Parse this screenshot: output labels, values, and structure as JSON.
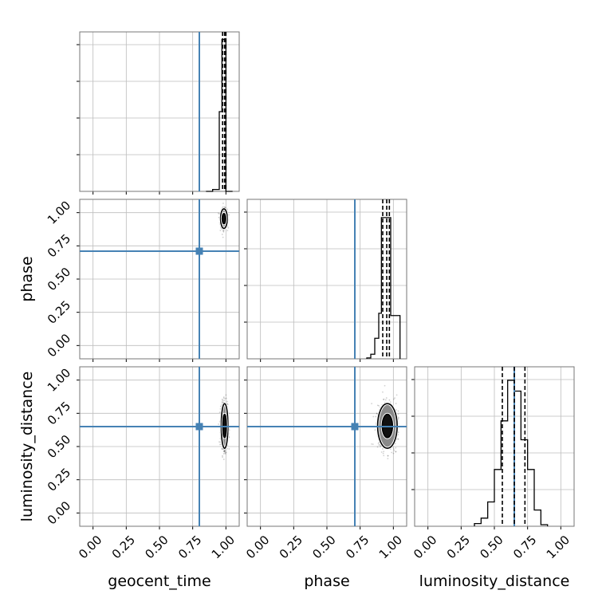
{
  "chart_data": {
    "type": "corner",
    "parameters": [
      "geocent_time",
      "phase",
      "luminosity_distance"
    ],
    "truths": [
      0.8,
      0.71,
      0.65
    ],
    "truth_color": "#4682b4",
    "axis_range": [
      -0.1,
      1.1
    ],
    "tick_values": [
      0.0,
      0.25,
      0.5,
      0.75,
      1.0
    ],
    "tick_labels": [
      "0.00",
      "0.25",
      "0.50",
      "0.75",
      "1.00"
    ],
    "diag_hist_ticks": [
      1,
      2,
      3,
      4
    ],
    "histograms": [
      {
        "name": "geocent_time",
        "bin_edges": [
          0.85,
          0.9,
          0.95,
          0.97,
          1.0,
          1.05
        ],
        "counts": [
          0.0,
          0.05,
          2.1,
          4.0,
          0.0
        ],
        "ymax": 4.2,
        "quantiles": [
          0.975,
          0.99,
          1.0
        ]
      },
      {
        "name": "phase",
        "bin_edges": [
          0.8,
          0.83,
          0.86,
          0.89,
          0.91,
          0.93,
          0.96,
          0.98,
          1.0,
          1.05
        ],
        "counts": [
          0.02,
          0.1,
          0.45,
          1.0,
          3.1,
          3.1,
          3.1,
          0.95,
          0.95
        ],
        "ymax": 3.5,
        "quantiles": [
          0.92,
          0.95,
          0.97
        ]
      },
      {
        "name": "luminosity_distance",
        "bin_edges": [
          0.35,
          0.4,
          0.45,
          0.5,
          0.55,
          0.6,
          0.65,
          0.7,
          0.75,
          0.8,
          0.85,
          0.9
        ],
        "counts": [
          0.05,
          0.15,
          0.45,
          1.05,
          1.95,
          2.7,
          2.5,
          1.6,
          1.05,
          0.3,
          0.03
        ],
        "ymax": 2.95,
        "quantiles": [
          0.56,
          0.65,
          0.73
        ]
      }
    ],
    "scatter_panels": [
      {
        "x_param": "geocent_time",
        "y_param": "phase",
        "mean": [
          0.985,
          0.955
        ],
        "sd": [
          0.012,
          0.035
        ]
      },
      {
        "x_param": "geocent_time",
        "y_param": "luminosity_distance",
        "mean": [
          0.99,
          0.655
        ],
        "sd": [
          0.012,
          0.08
        ]
      },
      {
        "x_param": "phase",
        "y_param": "luminosity_distance",
        "mean": [
          0.955,
          0.655
        ],
        "sd": [
          0.035,
          0.08
        ]
      }
    ],
    "xlabels": [
      "geocent_time",
      "phase",
      "luminosity_distance"
    ],
    "ylabels": [
      "",
      "phase",
      "luminosity_distance"
    ]
  }
}
